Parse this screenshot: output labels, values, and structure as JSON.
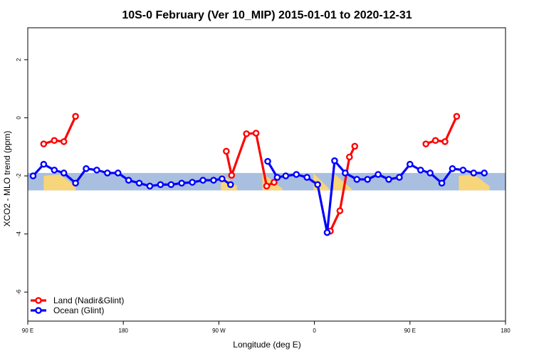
{
  "chart_data": {
    "type": "line",
    "title": "10S-0 February (Ver 10_MIP)   2015-01-01 to 2020-12-31",
    "xlabel": "Longitude (deg E)",
    "ylabel": "XCO2 - MLO trend (ppm)",
    "xlim": [
      90,
      540
    ],
    "ylim": [
      -7,
      3.1
    ],
    "x_ticks": [
      {
        "value": 90,
        "label": "90 E"
      },
      {
        "value": 180,
        "label": "180"
      },
      {
        "value": 270,
        "label": "90 W"
      },
      {
        "value": 360,
        "label": "0"
      },
      {
        "value": 450,
        "label": "90 E"
      },
      {
        "value": 540,
        "label": "180"
      }
    ],
    "y_ticks": [
      {
        "value": -6,
        "label": "-6"
      },
      {
        "value": -4,
        "label": "-4"
      },
      {
        "value": -2,
        "label": "-2"
      },
      {
        "value": 0,
        "label": "0"
      },
      {
        "value": 2,
        "label": "2"
      }
    ],
    "band": {
      "y_min": -2.5,
      "y_max": -1.9
    },
    "land_segments": [
      [
        [
          105,
          -2.0
        ],
        [
          120,
          -1.95
        ],
        [
          135,
          -2.35
        ]
      ],
      [
        [
          272,
          -1.9
        ],
        [
          287,
          -2.35
        ]
      ],
      [
        [
          311,
          -1.9
        ],
        [
          330,
          -2.45
        ]
      ],
      [
        [
          359,
          -1.9
        ],
        [
          374,
          -2.45
        ]
      ],
      [
        [
          378,
          -1.9
        ],
        [
          395,
          -2.45
        ]
      ],
      [
        [
          496,
          -2.0
        ],
        [
          510,
          -1.95
        ],
        [
          525,
          -2.35
        ]
      ]
    ],
    "series": [
      {
        "name": "Land (Nadir&Glint)",
        "color": "#ff0000",
        "segments": [
          [
            [
              105,
              -0.9
            ],
            [
              115,
              -0.78
            ],
            [
              124,
              -0.82
            ],
            [
              135,
              0.05
            ]
          ],
          [
            [
              277,
              -1.15
            ],
            [
              282,
              -1.98
            ],
            [
              296,
              -0.55
            ],
            [
              305,
              -0.53
            ],
            [
              315,
              -2.35
            ],
            [
              322,
              -2.22
            ]
          ],
          [
            [
              375,
              -3.9
            ],
            [
              384,
              -3.2
            ],
            [
              393,
              -1.35
            ],
            [
              398,
              -0.98
            ]
          ],
          [
            [
              465,
              -0.9
            ],
            [
              474,
              -0.78
            ],
            [
              483,
              -0.82
            ],
            [
              494,
              0.05
            ]
          ]
        ]
      },
      {
        "name": "Ocean (Glint)",
        "color": "#0000ff",
        "segments": [
          [
            [
              95,
              -2.0
            ],
            [
              105,
              -1.6
            ],
            [
              115,
              -1.8
            ],
            [
              124,
              -1.9
            ],
            [
              135,
              -2.25
            ],
            [
              145,
              -1.75
            ],
            [
              155,
              -1.8
            ],
            [
              165,
              -1.9
            ],
            [
              175,
              -1.9
            ],
            [
              185,
              -2.15
            ],
            [
              195,
              -2.25
            ],
            [
              205,
              -2.35
            ],
            [
              215,
              -2.3
            ],
            [
              225,
              -2.3
            ],
            [
              235,
              -2.25
            ],
            [
              245,
              -2.22
            ],
            [
              255,
              -2.15
            ],
            [
              265,
              -2.15
            ],
            [
              273,
              -2.1
            ],
            [
              281,
              -2.3
            ]
          ],
          [
            [
              316,
              -1.5
            ],
            [
              325,
              -2.05
            ],
            [
              333,
              -2.0
            ],
            [
              343,
              -1.95
            ],
            [
              353,
              -2.05
            ],
            [
              363,
              -2.3
            ],
            [
              372,
              -3.95
            ],
            [
              379,
              -1.48
            ],
            [
              389,
              -1.9
            ],
            [
              400,
              -2.12
            ],
            [
              410,
              -2.12
            ],
            [
              420,
              -1.95
            ],
            [
              430,
              -2.12
            ],
            [
              440,
              -2.05
            ],
            [
              450,
              -1.6
            ],
            [
              460,
              -1.8
            ],
            [
              469,
              -1.9
            ],
            [
              480,
              -2.25
            ],
            [
              490,
              -1.75
            ],
            [
              500,
              -1.8
            ],
            [
              510,
              -1.9
            ],
            [
              520,
              -1.9
            ]
          ]
        ]
      }
    ],
    "legend_position": "bottom-left"
  },
  "colors": {
    "ocean_band": "#a9bfdf",
    "land_band": "#f7d57a"
  }
}
